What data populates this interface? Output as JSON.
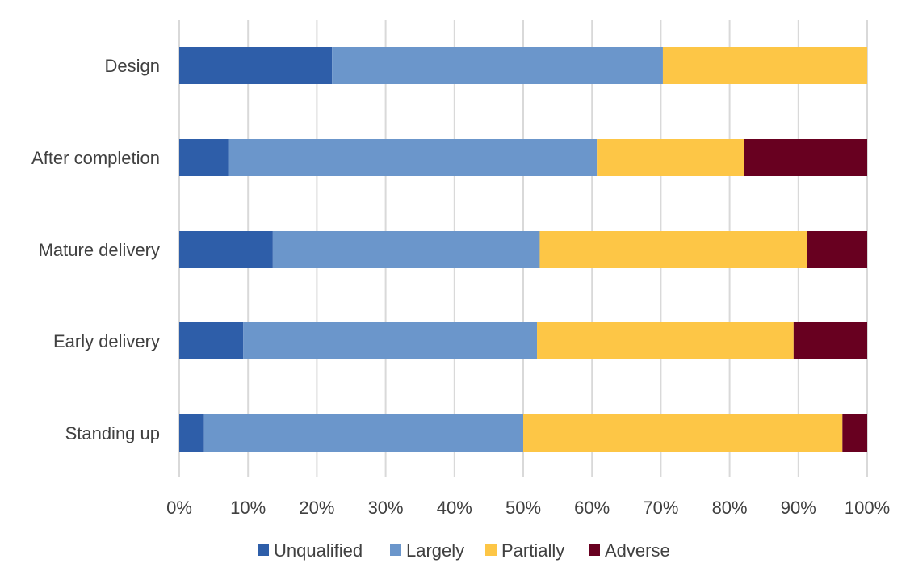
{
  "chart_data": {
    "type": "bar",
    "orientation": "horizontal",
    "stacked": "percent",
    "categories": [
      "Design",
      "After completion",
      "Mature delivery",
      "Early delivery",
      "Standing up"
    ],
    "series": [
      {
        "name": "Unqualified",
        "color": "#2e5ea9",
        "values": [
          22.2,
          7.1,
          13.6,
          9.3,
          3.6
        ]
      },
      {
        "name": "Largely",
        "color": "#6b96cb",
        "values": [
          48.1,
          53.6,
          38.8,
          42.7,
          46.4
        ]
      },
      {
        "name": "Partially",
        "color": "#fdc646",
        "values": [
          29.7,
          21.4,
          38.8,
          37.3,
          46.4
        ]
      },
      {
        "name": "Adverse",
        "color": "#680020",
        "values": [
          0.0,
          17.9,
          8.8,
          10.7,
          3.6
        ]
      }
    ],
    "xlim": [
      0,
      100
    ],
    "xticks": [
      "0%",
      "10%",
      "20%",
      "30%",
      "40%",
      "50%",
      "60%",
      "70%",
      "80%",
      "90%",
      "100%"
    ],
    "grid": true,
    "legend_position": "bottom",
    "title": "",
    "xlabel": "",
    "ylabel": ""
  }
}
